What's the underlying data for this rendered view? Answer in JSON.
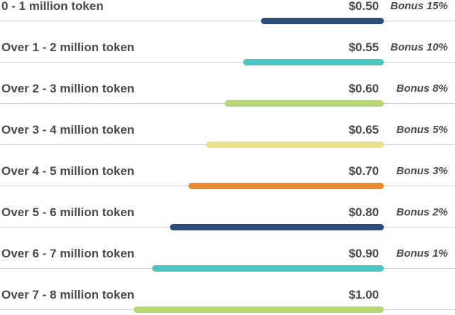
{
  "tiers": [
    {
      "label": "0 - 1 million token",
      "price": "$0.50",
      "bonus": "Bonus 15%",
      "color": "#2b4f7d",
      "bar_fraction": 0.27
    },
    {
      "label": "Over 1 - 2 million token",
      "price": "$0.55",
      "bonus": "Bonus 10%",
      "color": "#4bc5c0",
      "bar_fraction": 0.31
    },
    {
      "label": "Over 2 - 3 million token",
      "price": "$0.60",
      "bonus": "Bonus 8%",
      "color": "#b6d66f",
      "bar_fraction": 0.35
    },
    {
      "label": "Over 3 - 4 million token",
      "price": "$0.65",
      "bonus": "Bonus 5%",
      "color": "#ede08a",
      "bar_fraction": 0.39
    },
    {
      "label": "Over 4 - 5 million token",
      "price": "$0.70",
      "bonus": "Bonus 3%",
      "color": "#ec8a34",
      "bar_fraction": 0.43
    },
    {
      "label": "Over 5 - 6 million token",
      "price": "$0.80",
      "bonus": "Bonus 2%",
      "color": "#2b4f7d",
      "bar_fraction": 0.47
    },
    {
      "label": "Over 6 - 7 million token",
      "price": "$0.90",
      "bonus": "Bonus 1%",
      "color": "#4bc5c0",
      "bar_fraction": 0.51
    },
    {
      "label": "Over 7 - 8 million token",
      "price": "$1.00",
      "bonus": "",
      "color": "#b6d66f",
      "bar_fraction": 0.55
    }
  ]
}
